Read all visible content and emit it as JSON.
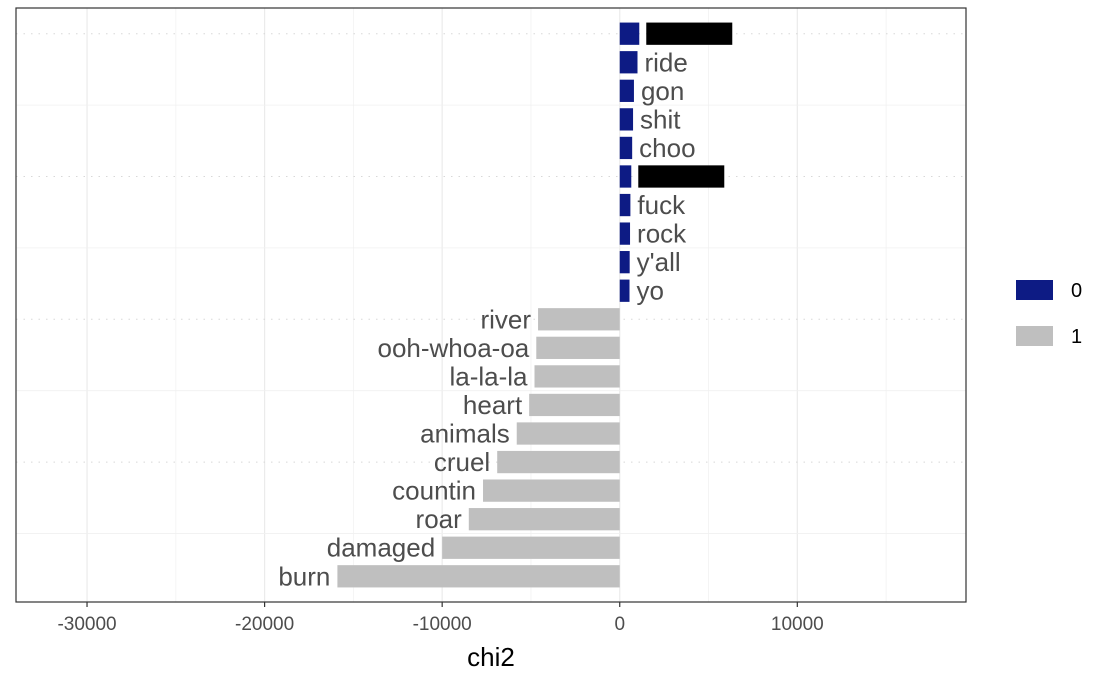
{
  "chart_data": {
    "type": "bar",
    "orientation": "horizontal",
    "xlabel": "chi2",
    "ylabel": "",
    "xlim": [
      -34000,
      19500
    ],
    "x_ticks": [
      -30000,
      -20000,
      -10000,
      0,
      10000
    ],
    "x_tick_labels": [
      "-30000",
      "-20000",
      "-10000",
      "0",
      "10000"
    ],
    "grid": true,
    "legend_position": "right",
    "colors": {
      "0": "#0d1b84",
      "1": "#bfbfbf"
    },
    "legend": [
      {
        "label": "0",
        "color": "#0d1b84"
      },
      {
        "label": "1",
        "color": "#bfbfbf"
      }
    ],
    "bars": [
      {
        "label": "",
        "value": 1100,
        "group": "0",
        "redacted": true
      },
      {
        "label": "ride",
        "value": 1000,
        "group": "0",
        "redacted": false
      },
      {
        "label": "gon",
        "value": 800,
        "group": "0",
        "redacted": false
      },
      {
        "label": "shit",
        "value": 750,
        "group": "0",
        "redacted": false
      },
      {
        "label": "choo",
        "value": 700,
        "group": "0",
        "redacted": false
      },
      {
        "label": "",
        "value": 650,
        "group": "0",
        "redacted": true
      },
      {
        "label": "fuck",
        "value": 600,
        "group": "0",
        "redacted": false
      },
      {
        "label": "rock",
        "value": 580,
        "group": "0",
        "redacted": false
      },
      {
        "label": "y'all",
        "value": 560,
        "group": "0",
        "redacted": false
      },
      {
        "label": "yo",
        "value": 550,
        "group": "0",
        "redacted": false
      },
      {
        "label": "river",
        "value": -4600,
        "group": "1",
        "redacted": false
      },
      {
        "label": "ooh-whoa-oa",
        "value": -4700,
        "group": "1",
        "redacted": false
      },
      {
        "label": "la-la-la",
        "value": -4800,
        "group": "1",
        "redacted": false
      },
      {
        "label": "heart",
        "value": -5100,
        "group": "1",
        "redacted": false
      },
      {
        "label": "animals",
        "value": -5800,
        "group": "1",
        "redacted": false
      },
      {
        "label": "cruel",
        "value": -6900,
        "group": "1",
        "redacted": false
      },
      {
        "label": "countin",
        "value": -7700,
        "group": "1",
        "redacted": false
      },
      {
        "label": "roar",
        "value": -8500,
        "group": "1",
        "redacted": false
      },
      {
        "label": "damaged",
        "value": -10000,
        "group": "1",
        "redacted": false
      },
      {
        "label": "burn",
        "value": -15900,
        "group": "1",
        "redacted": false
      }
    ]
  }
}
